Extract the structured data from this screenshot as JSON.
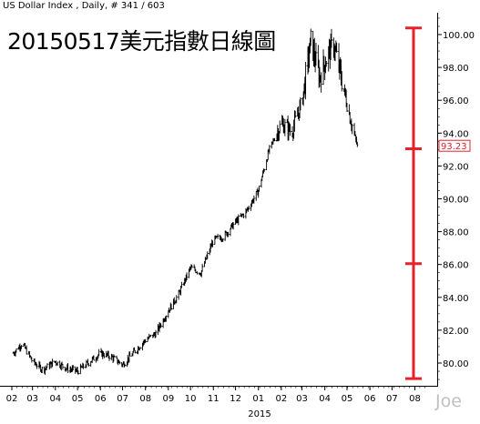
{
  "header": {
    "text": "US Dollar Index , Daily, # 341 / 603"
  },
  "chart_data": {
    "type": "line",
    "title": "20150517美元指數日線圖",
    "xlabel": "2015",
    "ylabel": "",
    "x_tick_labels": [
      "02",
      "03",
      "04",
      "05",
      "06",
      "07",
      "08",
      "09",
      "10",
      "11",
      "12",
      "01",
      "02",
      "03",
      "04",
      "05",
      "06",
      "07",
      "08"
    ],
    "y_ticks": [
      80.0,
      82.0,
      84.0,
      86.0,
      88.0,
      90.0,
      92.0,
      94.0,
      96.0,
      98.0,
      100.0
    ],
    "ylim": [
      78.9,
      101.1
    ],
    "last_value": "93.23",
    "grid": false,
    "series": [
      {
        "name": "",
        "x": [
          "2014-02-01",
          "2014-02-15",
          "2014-03-01",
          "2014-03-15",
          "2014-04-01",
          "2014-04-15",
          "2014-05-01",
          "2014-05-15",
          "2014-06-01",
          "2014-06-15",
          "2014-07-01",
          "2014-07-15",
          "2014-08-01",
          "2014-08-15",
          "2014-09-01",
          "2014-09-15",
          "2014-10-01",
          "2014-10-15",
          "2014-11-01",
          "2014-11-15",
          "2014-12-01",
          "2014-12-15",
          "2015-01-01",
          "2015-01-15",
          "2015-02-01",
          "2015-02-15",
          "2015-03-01",
          "2015-03-13",
          "2015-03-25",
          "2015-04-05",
          "2015-04-13",
          "2015-04-25",
          "2015-05-05",
          "2015-05-15"
        ],
        "values": [
          80.5,
          81.2,
          80.1,
          79.6,
          80.1,
          79.7,
          79.5,
          80.0,
          80.6,
          80.4,
          79.9,
          80.6,
          81.4,
          81.8,
          83.2,
          84.2,
          85.8,
          85.5,
          87.5,
          87.7,
          88.6,
          89.2,
          90.5,
          92.9,
          94.6,
          94.1,
          95.9,
          99.6,
          97.4,
          98.8,
          99.4,
          97.0,
          95.0,
          93.2
        ]
      }
    ],
    "markers": [
      {
        "name": "ruler",
        "color": "#e8202a",
        "levels": [
          79.05,
          86.05,
          93.05,
          100.4
        ]
      }
    ]
  },
  "watermark": "Joe"
}
